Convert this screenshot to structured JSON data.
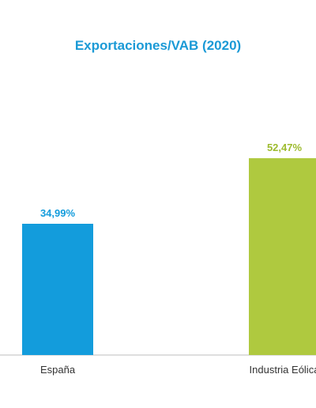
{
  "chart_data": {
    "type": "bar",
    "title": "Exportaciones/VAB (2020)",
    "categories": [
      "España",
      "Industria Eólica"
    ],
    "values": [
      34.99,
      52.47
    ],
    "value_labels": [
      "34,99%",
      "52,47%"
    ],
    "colors": [
      "#139cdc",
      "#afc93f"
    ],
    "label_colors": [
      "#139cdc",
      "#9dbb2e"
    ],
    "ylim": [
      0,
      60
    ],
    "grid": false,
    "legend": "none",
    "xlabel": "",
    "ylabel": ""
  },
  "colors": {
    "title": "#1b9ad6",
    "axis": "#bdbdbd"
  }
}
